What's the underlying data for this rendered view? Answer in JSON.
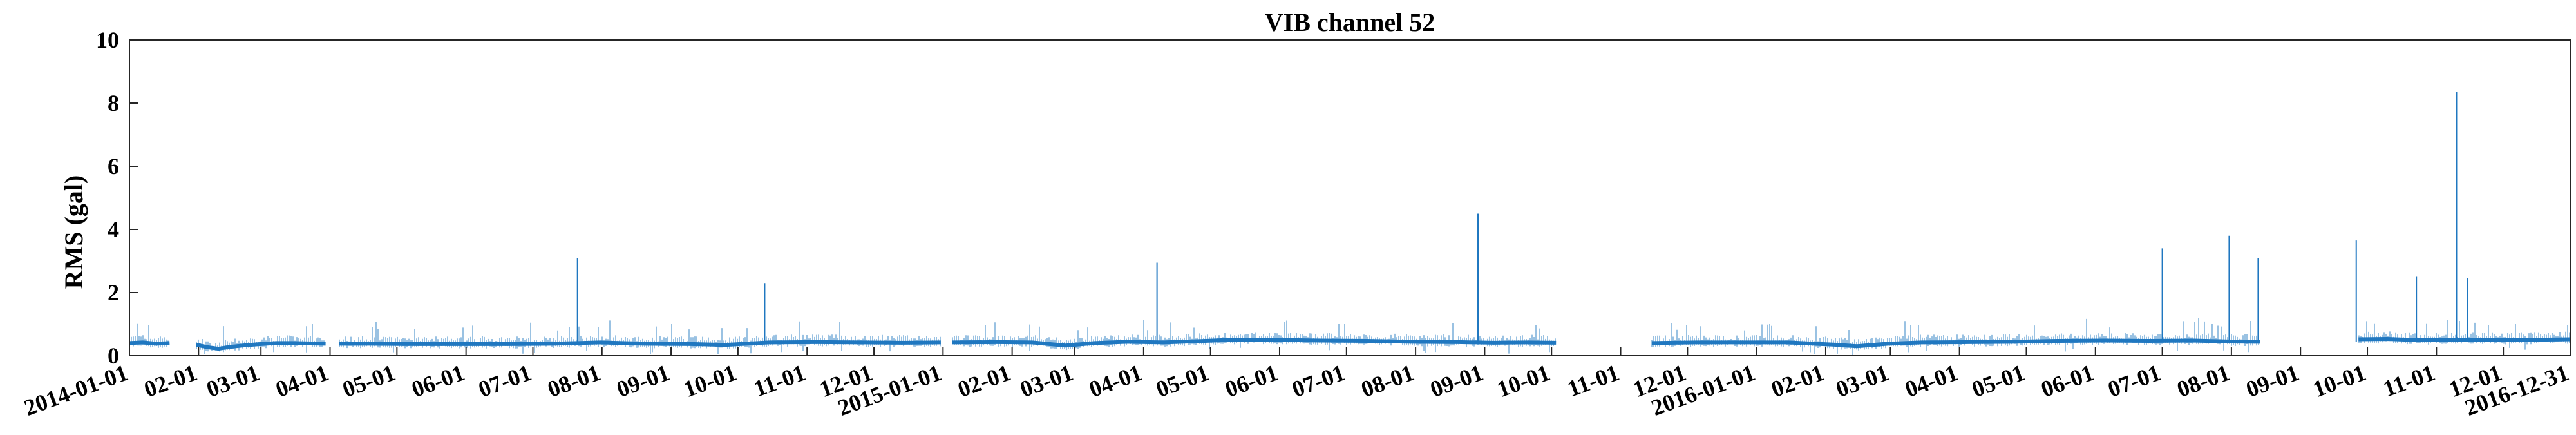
{
  "chart_data": {
    "type": "line",
    "title": "VIB channel 52",
    "xlabel": "",
    "ylabel": "RMS (gal)",
    "ylim": [
      0,
      10
    ],
    "yticks": [
      0,
      2,
      4,
      6,
      8,
      10
    ],
    "xlim": [
      "2014-01-01",
      "2016-12-31"
    ],
    "grid": false,
    "legend": "none",
    "colors": {
      "series": "#1f77c0",
      "axes": "#000000"
    },
    "xtick_labels": [
      "2014-01-01",
      "02-01",
      "03-01",
      "04-01",
      "05-01",
      "06-01",
      "07-01",
      "08-01",
      "09-01",
      "10-01",
      "11-01",
      "12-01",
      "2015-01-01",
      "02-01",
      "03-01",
      "04-01",
      "05-01",
      "06-01",
      "07-01",
      "08-01",
      "09-01",
      "10-01",
      "11-01",
      "12-01",
      "2016-01-01",
      "02-01",
      "03-01",
      "04-01",
      "05-01",
      "06-01",
      "07-01",
      "08-01",
      "09-01",
      "10-01",
      "11-01",
      "12-01",
      "2016-12-31"
    ],
    "xtick_dates": [
      "2014-01-01",
      "2014-02-01",
      "2014-03-01",
      "2014-04-01",
      "2014-05-01",
      "2014-06-01",
      "2014-07-01",
      "2014-08-01",
      "2014-09-01",
      "2014-10-01",
      "2014-11-01",
      "2014-12-01",
      "2015-01-01",
      "2015-02-01",
      "2015-03-01",
      "2015-04-01",
      "2015-05-01",
      "2015-06-01",
      "2015-07-01",
      "2015-08-01",
      "2015-09-01",
      "2015-10-01",
      "2015-11-01",
      "2015-12-01",
      "2016-01-01",
      "2016-02-01",
      "2016-03-01",
      "2016-04-01",
      "2016-05-01",
      "2016-06-01",
      "2016-07-01",
      "2016-08-01",
      "2016-09-01",
      "2016-10-01",
      "2016-11-01",
      "2016-12-01",
      "2016-12-31"
    ],
    "series": [
      {
        "segments": [
          {
            "x": [
              "2014-01-01",
              "2014-01-07",
              "2014-01-13",
              "2014-01-19"
            ],
            "y": [
              0.4,
              0.42,
              0.38,
              0.4
            ]
          },
          {
            "x": [
              "2014-01-31",
              "2014-02-05",
              "2014-02-10",
              "2014-02-15",
              "2014-02-22",
              "2014-03-01",
              "2014-03-08",
              "2014-03-15",
              "2014-03-22",
              "2014-03-30"
            ],
            "y": [
              0.35,
              0.27,
              0.22,
              0.28,
              0.33,
              0.37,
              0.4,
              0.4,
              0.39,
              0.38
            ]
          },
          {
            "x": [
              "2014-04-05",
              "2014-04-20",
              "2014-05-10",
              "2014-05-31",
              "2014-06-20",
              "2014-07-10",
              "2014-07-31",
              "2014-08-20",
              "2014-09-10",
              "2014-09-25",
              "2014-10-15",
              "2014-11-05",
              "2014-11-25",
              "2014-12-15",
              "2014-12-31"
            ],
            "y": [
              0.38,
              0.38,
              0.37,
              0.37,
              0.37,
              0.38,
              0.42,
              0.38,
              0.37,
              0.34,
              0.42,
              0.43,
              0.42,
              0.41,
              0.42
            ]
          },
          {
            "x": [
              "2015-01-05",
              "2015-01-25",
              "2015-02-10",
              "2015-02-25",
              "2015-03-10",
              "2015-03-25",
              "2015-04-10",
              "2015-04-25",
              "2015-05-10",
              "2015-05-31",
              "2015-06-20",
              "2015-07-10",
              "2015-07-31",
              "2015-08-20",
              "2015-09-05",
              "2015-09-20",
              "2015-10-03"
            ],
            "y": [
              0.42,
              0.43,
              0.42,
              0.32,
              0.4,
              0.44,
              0.42,
              0.46,
              0.5,
              0.5,
              0.48,
              0.47,
              0.44,
              0.43,
              0.41,
              0.42,
              0.41
            ]
          },
          {
            "x": [
              "2015-11-15",
              "2015-12-05",
              "2015-12-25",
              "2016-01-15",
              "2016-02-05",
              "2016-02-15",
              "2016-02-29",
              "2016-03-15",
              "2016-04-05",
              "2016-04-25",
              "2016-05-15",
              "2016-06-05",
              "2016-06-25",
              "2016-07-15",
              "2016-08-01",
              "2016-08-14"
            ],
            "y": [
              0.4,
              0.42,
              0.42,
              0.42,
              0.35,
              0.3,
              0.38,
              0.42,
              0.43,
              0.44,
              0.47,
              0.48,
              0.47,
              0.48,
              0.45,
              0.44
            ]
          },
          {
            "x": [
              "2016-08-16",
              "2016-09-05",
              "2016-09-25"
            ],
            "y": [
              0.0,
              0.0,
              0.0
            ]
          },
          {
            "x": [
              "2016-09-27",
              "2016-10-10",
              "2016-10-25",
              "2016-11-10",
              "2016-11-25",
              "2016-12-10",
              "2016-12-31"
            ],
            "y": [
              0.52,
              0.53,
              0.49,
              0.5,
              0.5,
              0.5,
              0.52
            ]
          }
        ],
        "spikes": [
          {
            "x": "2014-07-21",
            "y": 3.1
          },
          {
            "x": "2014-10-13",
            "y": 2.3
          },
          {
            "x": "2015-04-07",
            "y": 2.95
          },
          {
            "x": "2015-08-29",
            "y": 4.5
          },
          {
            "x": "2016-07-01",
            "y": 3.4
          },
          {
            "x": "2016-07-31",
            "y": 3.8
          },
          {
            "x": "2016-08-13",
            "y": 3.1
          },
          {
            "x": "2016-09-26",
            "y": 3.65
          },
          {
            "x": "2016-10-23",
            "y": 2.5
          },
          {
            "x": "2016-11-10",
            "y": 8.35
          },
          {
            "x": "2016-11-15",
            "y": 2.45
          }
        ]
      }
    ]
  }
}
